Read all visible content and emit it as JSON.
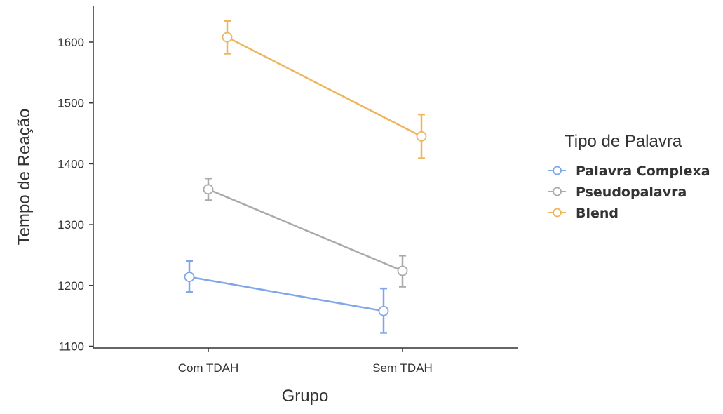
{
  "chart_data": {
    "type": "line",
    "xlabel": "Grupo",
    "ylabel": "Tempo de Reação",
    "categories": [
      "Com TDAH",
      "Sem TDAH"
    ],
    "yticks": [
      1100,
      1200,
      1300,
      1400,
      1500,
      1600
    ],
    "ylim": [
      1095,
      1660
    ],
    "grid": false,
    "legend": {
      "title": "Tipo de Palavra",
      "placement": "right"
    },
    "series": [
      {
        "name": "Palavra Complexa",
        "color": "#7ea6e8",
        "values": [
          1214,
          1158
        ],
        "error_low": [
          1189,
          1122
        ],
        "error_high": [
          1240,
          1195
        ]
      },
      {
        "name": "Pseudopalavra",
        "color": "#aaaaaa",
        "values": [
          1358,
          1224
        ],
        "error_low": [
          1340,
          1198
        ],
        "error_high": [
          1376,
          1249
        ]
      },
      {
        "name": "Blend",
        "color": "#eeb55c",
        "values": [
          1608,
          1445
        ],
        "error_low": [
          1581,
          1409
        ],
        "error_high": [
          1635,
          1481
        ]
      }
    ]
  }
}
